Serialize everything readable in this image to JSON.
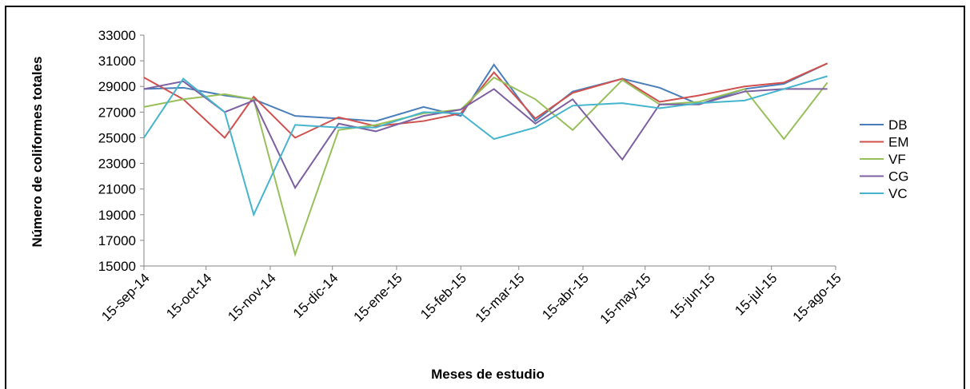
{
  "chart_data": {
    "type": "line",
    "y_label": "Número de coliformes totales",
    "x_label": "Meses de estudio",
    "x": [
      "2014-09-15",
      "2014-10-04",
      "2014-10-24",
      "2014-11-07",
      "2014-11-27",
      "2014-12-18",
      "2015-01-05",
      "2015-01-28",
      "2015-02-15",
      "2015-03-03",
      "2015-03-23",
      "2015-04-10",
      "2015-05-04",
      "2015-05-22",
      "2015-06-10",
      "2015-07-02",
      "2015-07-21",
      "2015-08-11"
    ],
    "series": [
      {
        "name": "DB",
        "color": "#4a7ebb",
        "values": [
          28800,
          28900,
          28300,
          28000,
          26700,
          26500,
          26300,
          27400,
          26700,
          30700,
          26300,
          28600,
          29600,
          28900,
          27600,
          28800,
          29200,
          30800
        ]
      },
      {
        "name": "EM",
        "color": "#d0504d",
        "values": [
          29700,
          28000,
          25000,
          28200,
          25000,
          26600,
          25900,
          26300,
          26900,
          30100,
          26500,
          28500,
          29600,
          27800,
          28300,
          29000,
          29300,
          30800
        ]
      },
      {
        "name": "VF",
        "color": "#98c05a",
        "values": [
          27400,
          28000,
          28400,
          28000,
          15900,
          25600,
          26000,
          26900,
          27200,
          29700,
          28000,
          25600,
          29500,
          27600,
          27800,
          28800,
          24900,
          29300
        ]
      },
      {
        "name": "CG",
        "color": "#7d60a0",
        "values": [
          28800,
          29400,
          27000,
          27900,
          21100,
          26100,
          25500,
          26700,
          27200,
          28800,
          26100,
          28000,
          23300,
          27600,
          27600,
          28600,
          28800,
          28800
        ]
      },
      {
        "name": "VC",
        "color": "#46b4cc",
        "values": [
          25000,
          29600,
          27000,
          19000,
          26000,
          25800,
          25800,
          27000,
          26900,
          24900,
          25800,
          27500,
          27700,
          27300,
          27700,
          27900,
          28800,
          29800
        ]
      }
    ],
    "xlim": [
      "2014-09-15",
      "2015-08-15"
    ],
    "xticks": [
      {
        "value": "2014-09-15",
        "label": "15-sep-14"
      },
      {
        "value": "2014-10-15",
        "label": "15-oct-14"
      },
      {
        "value": "2014-11-15",
        "label": "15-nov-14"
      },
      {
        "value": "2014-12-15",
        "label": "15-dic-14"
      },
      {
        "value": "2015-01-15",
        "label": "15-ene-15"
      },
      {
        "value": "2015-02-15",
        "label": "15-feb-15"
      },
      {
        "value": "2015-03-15",
        "label": "15-mar-15"
      },
      {
        "value": "2015-04-15",
        "label": "15-abr-15"
      },
      {
        "value": "2015-05-15",
        "label": "15-may-15"
      },
      {
        "value": "2015-06-15",
        "label": "15-jun-15"
      },
      {
        "value": "2015-07-15",
        "label": "15-jul-15"
      },
      {
        "value": "2015-08-15",
        "label": "15-ago-15"
      }
    ],
    "ylim": [
      15000,
      33000
    ],
    "yticks": [
      15000,
      17000,
      19000,
      21000,
      23000,
      25000,
      27000,
      29000,
      31000,
      33000
    ],
    "legend": "right"
  }
}
